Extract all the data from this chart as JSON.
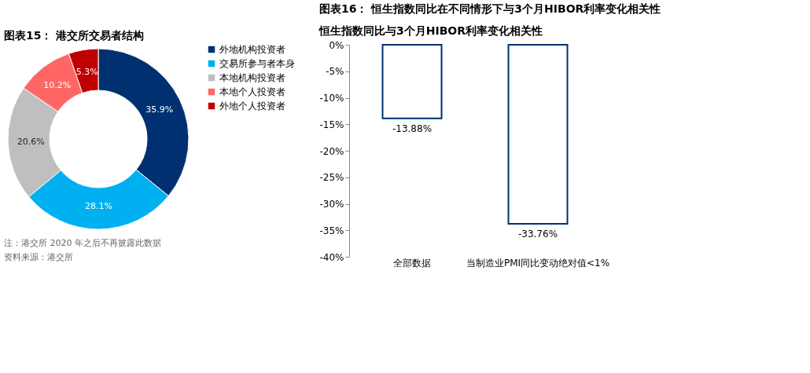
{
  "chart_data": [
    {
      "type": "donut",
      "title": "图表15： 港交所交易者结构",
      "categories": [
        "外地机构投资者",
        "交易所参与者本身",
        "本地机构投资者",
        "本地个人投资者",
        "外地个人投资者"
      ],
      "values": [
        35.9,
        28.1,
        20.6,
        10.2,
        5.3
      ],
      "colors": [
        "#003070",
        "#00b0f0",
        "#bfbfbf",
        "#ff6666",
        "#c00000"
      ],
      "value_labels": [
        "35.9%",
        "28.1%",
        "20.6%",
        "10.2%",
        "5.3%"
      ],
      "legend": "right",
      "annotations": [
        "注：港交所 2020 年之后不再披露此数据",
        "资料来源：港交所"
      ]
    },
    {
      "type": "bar",
      "title": "图表16： 恒生指数同比在不同情形下与3个月HIBOR利率变化相关性",
      "subtitle": "恒生指数同比与3个月HIBOR利率变化相关性",
      "categories": [
        "全部数据",
        "当制造业PMI同比变动绝对值<1%"
      ],
      "values": [
        -13.88,
        -33.76
      ],
      "color": "#003070",
      "value_labels": [
        "-13.88%",
        "-33.76%"
      ],
      "ylim": [
        -40,
        0
      ],
      "yticks": [
        {
          "value": 0,
          "label": "0%"
        },
        {
          "value": -5,
          "label": "-5%"
        },
        {
          "value": -10,
          "label": "-10%"
        },
        {
          "value": -15,
          "label": "-15%"
        },
        {
          "value": -20,
          "label": "-20%"
        },
        {
          "value": -25,
          "label": "-25%"
        },
        {
          "value": -30,
          "label": "-30%"
        },
        {
          "value": -35,
          "label": "-35%"
        },
        {
          "value": -40,
          "label": "-40%"
        }
      ],
      "grid": false
    }
  ]
}
